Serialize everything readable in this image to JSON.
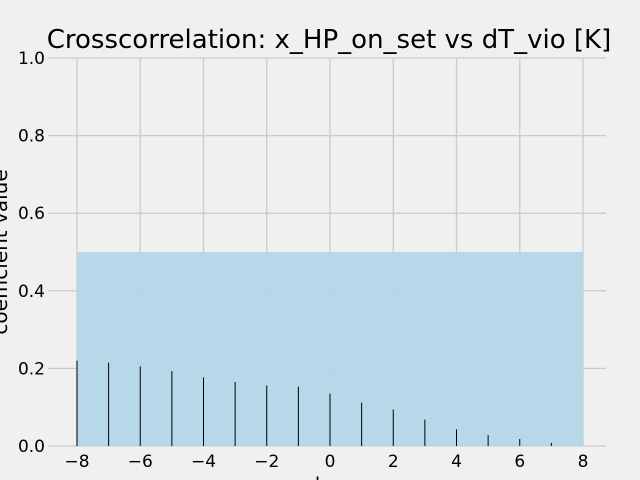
{
  "chart_data": {
    "type": "bar",
    "title": "Crosscorrelation: x_HP_on_set vs dT_vio [K]",
    "xlabel": "lag",
    "ylabel": "coefficient value",
    "xlim": [
      -8.2,
      8.7
    ],
    "ylim": [
      0,
      1.0
    ],
    "xticks": [
      -8,
      -6,
      -4,
      -2,
      0,
      2,
      4,
      6,
      8
    ],
    "yticks": [
      0.0,
      0.2,
      0.4,
      0.6,
      0.8,
      1.0
    ],
    "xtick_labels": [
      "−8",
      "−6",
      "−4",
      "−2",
      "0",
      "2",
      "4",
      "6",
      "8"
    ],
    "ytick_labels": [
      "0.0",
      "0.2",
      "0.4",
      "0.6",
      "0.8",
      "1.0"
    ],
    "grid": true,
    "x": [
      -8,
      -7,
      -6,
      -5,
      -4,
      -3,
      -2,
      -1,
      0,
      1,
      2,
      3,
      4,
      5,
      6,
      7
    ],
    "values": [
      0.22,
      0.215,
      0.205,
      0.193,
      0.177,
      0.165,
      0.156,
      0.153,
      0.135,
      0.112,
      0.094,
      0.068,
      0.043,
      0.028,
      0.018,
      0.008
    ],
    "band": {
      "x_start": -8,
      "x_end": 8,
      "y_start": 0,
      "y_end": 0.5
    },
    "colors": {
      "background": "#f0f0f0",
      "grid": "#cbcbcb",
      "band": "#b3d6e8",
      "bar": "#000000"
    }
  }
}
